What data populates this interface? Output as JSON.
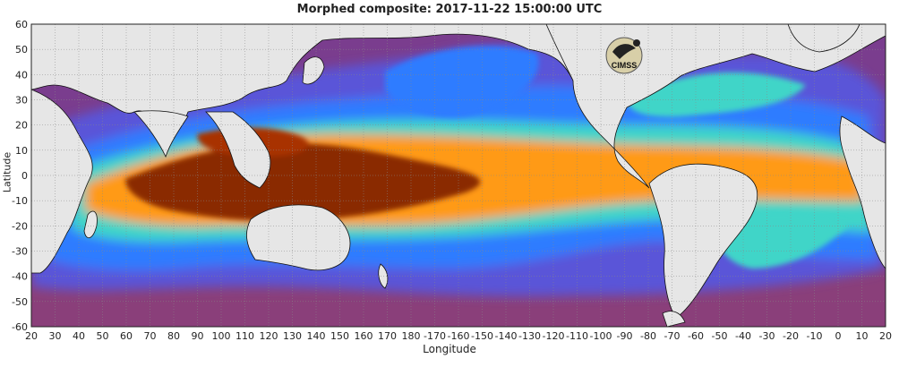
{
  "title": "Morphed composite: 2017-11-22 15:00:00 UTC",
  "xlabel": "Longitude",
  "ylabel": "Latitude",
  "logo_text": "CIMSS",
  "map": {
    "x_ticks": [
      "20",
      "30",
      "40",
      "50",
      "60",
      "70",
      "80",
      "90",
      "100",
      "110",
      "120",
      "130",
      "140",
      "150",
      "160",
      "170",
      "180",
      "-170",
      "-160",
      "-150",
      "-140",
      "-130",
      "-120",
      "-110",
      "-100",
      "-90",
      "-80",
      "-70",
      "-60",
      "-50",
      "-40",
      "-30",
      "-20",
      "-10",
      "0",
      "10",
      "20"
    ],
    "y_ticks": [
      "60",
      "50",
      "40",
      "30",
      "20",
      "10",
      "0",
      "-10",
      "-20",
      "-30",
      "-40",
      "-50",
      "-60"
    ],
    "lon_range": [
      20,
      380
    ],
    "lat_range": [
      -60,
      60
    ],
    "colors": {
      "land": "#e6e6e6",
      "dry": "#5a2a7a",
      "low": "#6a34a8",
      "moderate": "#2f7bff",
      "mid": "#3fd5c8",
      "high": "#ff9a18",
      "very_high": "#7a2200"
    }
  }
}
